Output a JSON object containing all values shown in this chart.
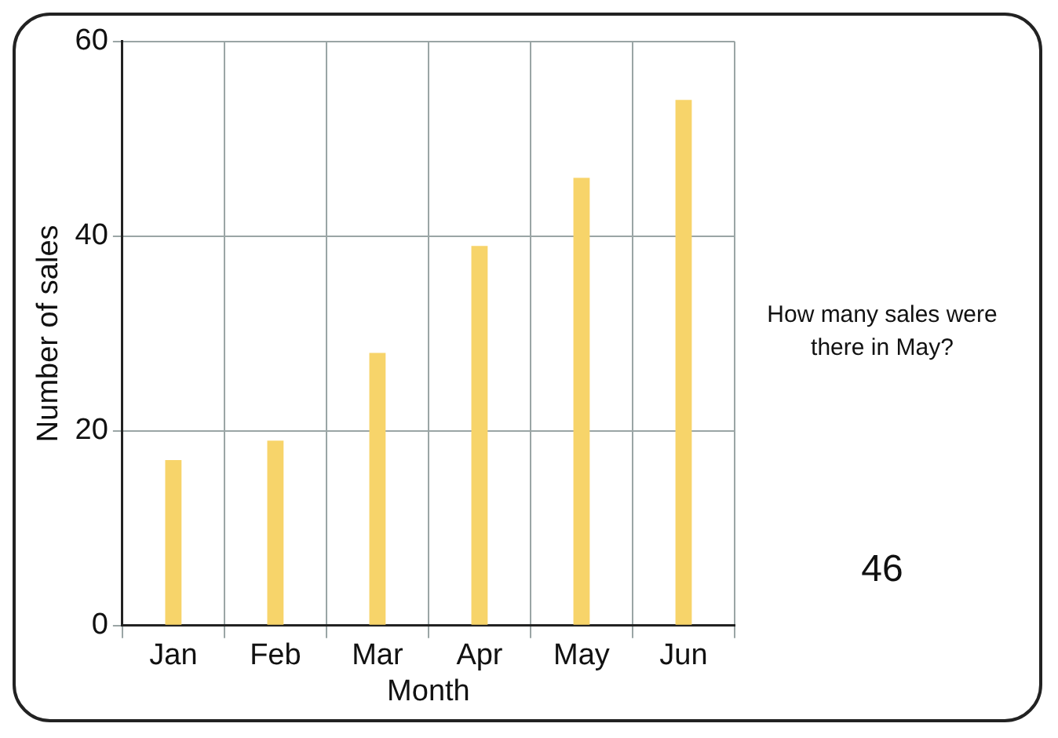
{
  "chart_data": {
    "type": "bar",
    "xlabel": "Month",
    "ylabel": "Number of sales",
    "categories": [
      "Jan",
      "Feb",
      "Mar",
      "Apr",
      "May",
      "Jun"
    ],
    "values": [
      17,
      19,
      28,
      39,
      46,
      54
    ],
    "color": "#f7d46a",
    "ylim": [
      0,
      60
    ],
    "yticks": [
      0,
      20,
      40,
      60
    ],
    "grid": true,
    "annotations": [
      "How many sales were there in May?",
      "46"
    ]
  }
}
